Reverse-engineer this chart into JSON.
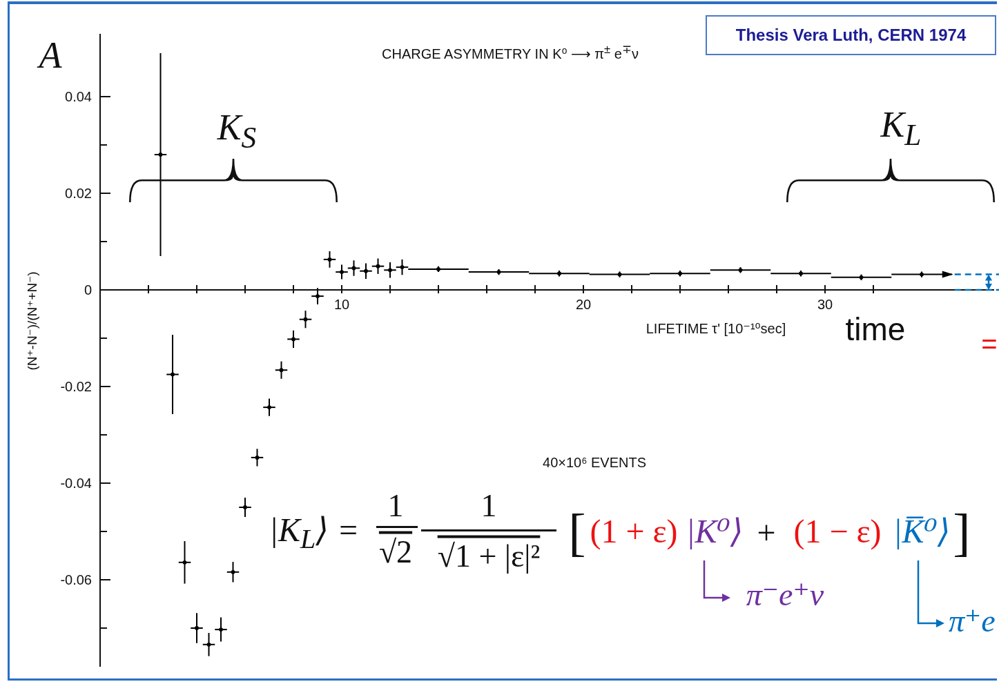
{
  "chart_data": {
    "type": "scatter",
    "title": "CHARGE ASYMMETRY IN K⁰ ⟶ π$^{±}$ e$^{∓}$ν",
    "xlabel": "LIFETIME τ' [10⁻¹⁰sec]",
    "ylabel": "(N⁺-N⁻)/(N⁺+N⁻)",
    "x": [
      2.5,
      3,
      3.5,
      4,
      4.5,
      5,
      5.5,
      6,
      6.5,
      7,
      7.5,
      8,
      8.5,
      9,
      9.5,
      10,
      10.5,
      11,
      11.5,
      12,
      12.5,
      14,
      16.5,
      19,
      21.5,
      24,
      26.5,
      29,
      31.5,
      34
    ],
    "values": [
      0.028,
      -0.0175,
      -0.0564,
      -0.07,
      -0.0734,
      -0.0703,
      -0.0584,
      -0.045,
      -0.0347,
      -0.0243,
      -0.0166,
      -0.0102,
      -0.0061,
      -0.0013,
      0.0063,
      0.0037,
      0.0045,
      0.0039,
      0.0049,
      0.0041,
      0.0047,
      0.0043,
      0.0037,
      0.0034,
      0.0032,
      0.0034,
      0.0041,
      0.0034,
      0.0026,
      0.0032
    ],
    "errors": [
      0.021,
      0.0082,
      0.0044,
      0.0031,
      0.0024,
      0.0025,
      0.0021,
      0.002,
      0.0018,
      0.0018,
      0.0018,
      0.0018,
      0.0018,
      0.0017,
      0.0017,
      0.0015,
      0.0016,
      0.0016,
      0.0016,
      0.0016,
      0.0016,
      0.0006,
      0.0006,
      0.0006,
      0.0006,
      0.0006,
      0.0006,
      0.0006,
      0.0006,
      0.0006
    ],
    "xerrors": [
      0.25,
      0.25,
      0.25,
      0.25,
      0.25,
      0.25,
      0.25,
      0.25,
      0.25,
      0.25,
      0.25,
      0.25,
      0.25,
      0.25,
      0.25,
      0.25,
      0.25,
      0.25,
      0.25,
      0.25,
      0.25,
      1.25,
      1.25,
      1.25,
      1.25,
      1.25,
      1.25,
      1.25,
      1.25,
      1.25
    ],
    "color": "#000000",
    "marker": "circle",
    "xlim": [
      0,
      37
    ],
    "xticks": [
      {
        "value": 2,
        "label": null
      },
      {
        "value": 4,
        "label": null
      },
      {
        "value": 6,
        "label": null
      },
      {
        "value": 8,
        "label": null
      },
      10,
      {
        "value": 12,
        "label": null
      },
      {
        "value": 14,
        "label": null
      },
      {
        "value": 16,
        "label": null
      },
      {
        "value": 18,
        "label": null
      },
      20,
      {
        "value": 22,
        "label": null
      },
      {
        "value": 24,
        "label": null
      },
      {
        "value": 26,
        "label": null
      },
      {
        "value": 28,
        "label": null
      },
      30,
      {
        "value": 32,
        "label": null
      }
    ],
    "ylim": [
      -0.078,
      0.053
    ],
    "yticks": [
      {
        "value": -0.07,
        "label": null
      },
      -0.06,
      {
        "value": -0.05,
        "label": null
      },
      -0.04,
      {
        "value": -0.03,
        "label": null
      },
      -0.02,
      {
        "value": -0.01,
        "label": null
      },
      0,
      {
        "value": 0.01,
        "label": null
      },
      0.02,
      {
        "value": 0.03,
        "label": null
      },
      0.04
    ],
    "annotations": [
      "A",
      "K$_{S}$",
      "K$_{L}$",
      "Thesis Vera Luth, CERN 1974",
      "time",
      "40×10⁶ EVENTS",
      "|K$_{L}$⟩ =",
      "1",
      "√2",
      "1",
      "√1 + |ε|²",
      "[",
      "(1 + ε)",
      "|K⁰⟩",
      "+",
      "(1 − ε)",
      "|K̅⁰⟩",
      "]",
      "π⁻e⁺ν",
      "π⁺e",
      "="
    ]
  }
}
